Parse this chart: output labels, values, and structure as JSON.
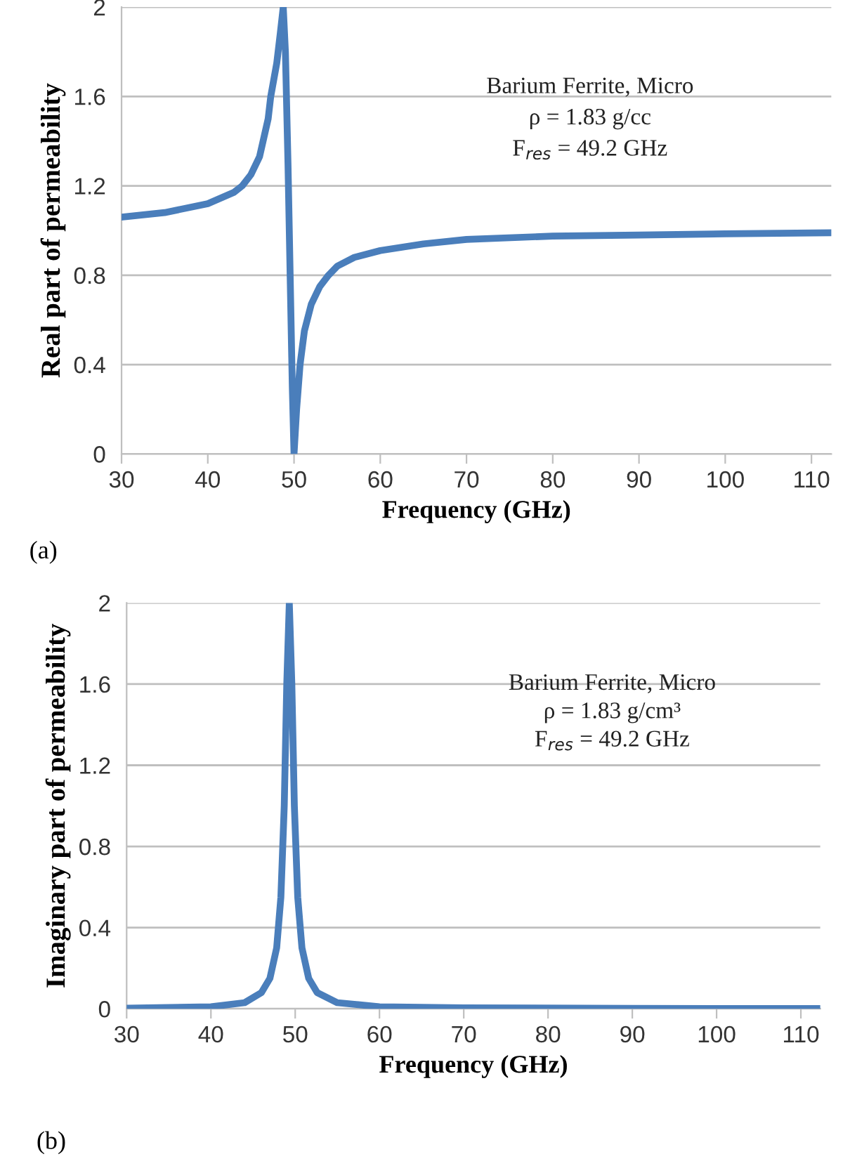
{
  "chart_data": [
    {
      "type": "line",
      "xlabel": "Frequency (GHz)",
      "ylabel": "Real part of permeability",
      "annotations": [
        "Barium Ferrite, Micro",
        "ρ = 1.83 g/cc",
        "F$_{res}$ = 49.2 GHz",
        "(a)"
      ],
      "x": [
        30,
        35,
        40,
        43,
        44,
        45,
        46,
        47,
        47.3,
        48,
        48.4,
        48.75,
        49.0,
        49.3,
        49.6,
        49.8,
        50.0,
        50.3,
        50.7,
        51.2,
        52,
        53,
        54,
        55,
        57,
        60,
        65,
        70,
        80,
        90,
        100,
        112.3
      ],
      "series": [
        {
          "color": "#4a7ebb",
          "values": [
            1.06,
            1.08,
            1.12,
            1.17,
            1.2,
            1.25,
            1.33,
            1.5,
            1.6,
            1.75,
            1.88,
            2.0,
            1.8,
            1.3,
            0.7,
            0.3,
            0.0,
            0.2,
            0.4,
            0.55,
            0.67,
            0.75,
            0.8,
            0.84,
            0.88,
            0.91,
            0.94,
            0.96,
            0.975,
            0.98,
            0.985,
            0.99
          ]
        }
      ],
      "xlim": [
        30,
        112.3
      ],
      "ylim": [
        0,
        2
      ],
      "xticks": [
        30,
        40,
        50,
        60,
        70,
        80,
        90,
        100,
        110
      ],
      "yticks": [
        0,
        0.4,
        0.8,
        1.2,
        1.6,
        2
      ],
      "grid": "y",
      "marker": "none",
      "line_style": "solid"
    },
    {
      "type": "line",
      "xlabel": "Frequency (GHz)",
      "ylabel": "Imaginary part of permeability",
      "annotations": [
        "Barium Ferrite, Micro",
        "ρ = 1.83 g/cm³",
        "F$_{res}$ = 49.2 GHz",
        "(b)"
      ],
      "x": [
        30,
        40,
        44,
        46,
        47,
        47.8,
        48.3,
        48.7,
        49.0,
        49.3,
        49.6,
        49.9,
        50.3,
        50.8,
        51.6,
        52.6,
        55,
        60,
        70,
        90,
        112.3
      ],
      "series": [
        {
          "color": "#4a7ebb",
          "values": [
            0.003,
            0.01,
            0.03,
            0.08,
            0.15,
            0.3,
            0.55,
            1.0,
            1.6,
            2.0,
            1.6,
            1.0,
            0.55,
            0.3,
            0.15,
            0.08,
            0.03,
            0.01,
            0.005,
            0.002,
            0.001
          ]
        }
      ],
      "xlim": [
        30,
        112.3
      ],
      "ylim": [
        0,
        2
      ],
      "xticks": [
        30,
        40,
        50,
        60,
        70,
        80,
        90,
        100,
        110
      ],
      "yticks": [
        0,
        0.4,
        0.8,
        1.2,
        1.6,
        2
      ],
      "grid": "y",
      "marker": "none",
      "line_style": "solid"
    }
  ]
}
